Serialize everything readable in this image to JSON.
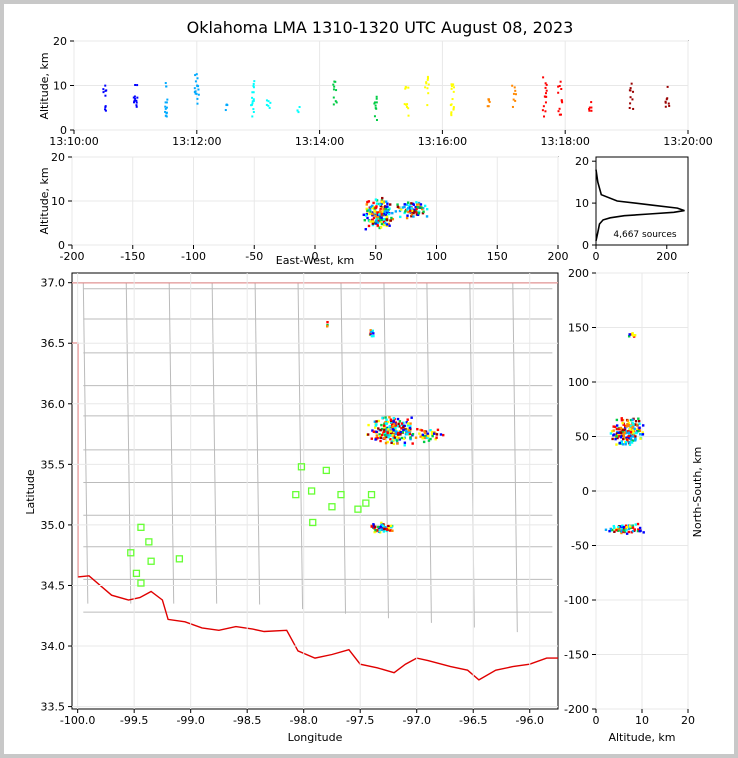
{
  "title": "Oklahoma LMA 1310-1320 UTC August 08, 2023",
  "source_count": "4,667 sources",
  "colors": {
    "border": "#e00000",
    "county": "#bbbbbb",
    "station": "#66ff33",
    "density_curve": "#000000",
    "source_palette": [
      "#0000ff",
      "#00aaff",
      "#00ffff",
      "#00cc44",
      "#ffff00",
      "#ff8800",
      "#ff0000",
      "#990000"
    ]
  },
  "chart_data": [
    {
      "name": "time-height",
      "type": "scatter",
      "xlabel": "",
      "ylabel": "Altitude, km",
      "x_ticks": [
        "13:10:00",
        "13:12:00",
        "13:14:00",
        "13:16:00",
        "13:18:00",
        "13:20:00"
      ],
      "xlim": [
        "13:10:00",
        "13:20:00"
      ],
      "y_ticks": [
        0,
        10,
        20
      ],
      "ylim": [
        0,
        20
      ],
      "clusters": [
        {
          "t": "13:10:30",
          "alt": [
            3,
            10
          ],
          "n": 10
        },
        {
          "t": "13:11:00",
          "alt": [
            4,
            11
          ],
          "n": 12
        },
        {
          "t": "13:11:30",
          "alt": [
            3,
            11
          ],
          "n": 14
        },
        {
          "t": "13:12:00",
          "alt": [
            3,
            13
          ],
          "n": 16
        },
        {
          "t": "13:12:30",
          "alt": [
            4,
            6
          ],
          "n": 4
        },
        {
          "t": "13:12:55",
          "alt": [
            3,
            11
          ],
          "n": 16
        },
        {
          "t": "13:13:10",
          "alt": [
            4,
            7
          ],
          "n": 6
        },
        {
          "t": "13:13:40",
          "alt": [
            4,
            7
          ],
          "n": 4
        },
        {
          "t": "13:14:15",
          "alt": [
            4,
            11
          ],
          "n": 10
        },
        {
          "t": "13:14:55",
          "alt": [
            2,
            10
          ],
          "n": 10
        },
        {
          "t": "13:15:25",
          "alt": [
            3,
            10
          ],
          "n": 10
        },
        {
          "t": "13:15:45",
          "alt": [
            5,
            12
          ],
          "n": 10
        },
        {
          "t": "13:16:10",
          "alt": [
            3,
            11
          ],
          "n": 16
        },
        {
          "t": "13:16:45",
          "alt": [
            5,
            8
          ],
          "n": 6
        },
        {
          "t": "13:17:10",
          "alt": [
            4,
            10
          ],
          "n": 8
        },
        {
          "t": "13:17:40",
          "alt": [
            3,
            12
          ],
          "n": 14
        },
        {
          "t": "13:17:55",
          "alt": [
            3,
            11
          ],
          "n": 12
        },
        {
          "t": "13:18:25",
          "alt": [
            4,
            8
          ],
          "n": 6
        },
        {
          "t": "13:19:05",
          "alt": [
            4,
            11
          ],
          "n": 10
        },
        {
          "t": "13:19:40",
          "alt": [
            5,
            10
          ],
          "n": 8
        }
      ]
    },
    {
      "name": "east-west-height",
      "type": "scatter",
      "xlabel": "East-West, km",
      "ylabel": "Altitude, km",
      "x_ticks": [
        -200,
        -150,
        -100,
        -50,
        0,
        50,
        100,
        150,
        200
      ],
      "xlim": [
        -200,
        200
      ],
      "y_ticks": [
        0,
        10,
        20
      ],
      "ylim": [
        0,
        20
      ],
      "clusters": [
        {
          "x": [
            40,
            65
          ],
          "alt": [
            3,
            11
          ],
          "n": 160
        },
        {
          "x": [
            65,
            95
          ],
          "alt": [
            6,
            10
          ],
          "n": 80
        }
      ]
    },
    {
      "name": "altitude-histogram",
      "type": "line",
      "xlabel": "",
      "ylabel": "",
      "x_ticks": [
        0,
        200
      ],
      "xlim": [
        0,
        260
      ],
      "y_ticks": [
        0,
        10,
        20
      ],
      "ylim": [
        0,
        21
      ],
      "x": [
        0,
        5,
        10,
        20,
        40,
        80,
        150,
        220,
        250,
        230,
        160,
        60,
        15,
        5,
        0
      ],
      "y": [
        1,
        3,
        5,
        6,
        6.5,
        7,
        7.4,
        7.8,
        8.2,
        8.8,
        9.5,
        10.5,
        12,
        15,
        18
      ]
    },
    {
      "name": "plan-view",
      "type": "scatter",
      "xlabel": "Longitude",
      "ylabel": "Latitude",
      "x_ticks": [
        -100.0,
        -99.5,
        -99.0,
        -98.5,
        -98.0,
        -97.5,
        -97.0,
        -96.5,
        -96.0
      ],
      "xlim": [
        -100.05,
        -95.75
      ],
      "y_ticks": [
        33.5,
        34.0,
        34.5,
        35.0,
        35.5,
        36.0,
        36.5,
        37.0
      ],
      "ylim": [
        33.48,
        37.08
      ],
      "clusters": [
        {
          "lon": [
            -97.45,
            -97.0
          ],
          "lat": [
            35.65,
            35.9
          ],
          "n": 220
        },
        {
          "lon": [
            -97.05,
            -96.75
          ],
          "lat": [
            35.68,
            35.8
          ],
          "n": 40
        },
        {
          "lon": [
            -97.42,
            -97.2
          ],
          "lat": [
            34.93,
            35.03
          ],
          "n": 60
        },
        {
          "lon": [
            -97.43,
            -97.38
          ],
          "lat": [
            36.55,
            36.62
          ],
          "n": 10
        },
        {
          "lon": [
            -97.8,
            -97.78
          ],
          "lat": [
            36.63,
            36.68
          ],
          "n": 3
        }
      ],
      "stations": [
        {
          "lon": -98.02,
          "lat": 35.48
        },
        {
          "lon": -97.8,
          "lat": 35.45
        },
        {
          "lon": -98.07,
          "lat": 35.25
        },
        {
          "lon": -97.93,
          "lat": 35.28
        },
        {
          "lon": -97.67,
          "lat": 35.25
        },
        {
          "lon": -97.4,
          "lat": 35.25
        },
        {
          "lon": -97.45,
          "lat": 35.18
        },
        {
          "lon": -97.52,
          "lat": 35.13
        },
        {
          "lon": -97.75,
          "lat": 35.15
        },
        {
          "lon": -97.92,
          "lat": 35.02
        },
        {
          "lon": -99.44,
          "lat": 34.98
        },
        {
          "lon": -99.37,
          "lat": 34.86
        },
        {
          "lon": -99.53,
          "lat": 34.77
        },
        {
          "lon": -99.35,
          "lat": 34.7
        },
        {
          "lon": -99.1,
          "lat": 34.72
        },
        {
          "lon": -99.48,
          "lat": 34.6
        },
        {
          "lon": -99.44,
          "lat": 34.52
        }
      ]
    },
    {
      "name": "north-south-height",
      "type": "scatter",
      "xlabel": "Altitude, km",
      "ylabel": "North-South, km",
      "x_ticks": [
        0,
        10,
        20
      ],
      "xlim": [
        0,
        20
      ],
      "y_ticks": [
        200,
        150,
        100,
        50,
        0,
        -50,
        -100,
        -150,
        -200
      ],
      "ylim": [
        -200,
        200
      ],
      "clusters": [
        {
          "alt": [
            3,
            11
          ],
          "y": [
            40,
            68
          ],
          "n": 180
        },
        {
          "alt": [
            2,
            11
          ],
          "y": [
            -40,
            -30
          ],
          "n": 70
        },
        {
          "alt": [
            7,
            9
          ],
          "y": [
            140,
            146
          ],
          "n": 8
        }
      ]
    }
  ]
}
